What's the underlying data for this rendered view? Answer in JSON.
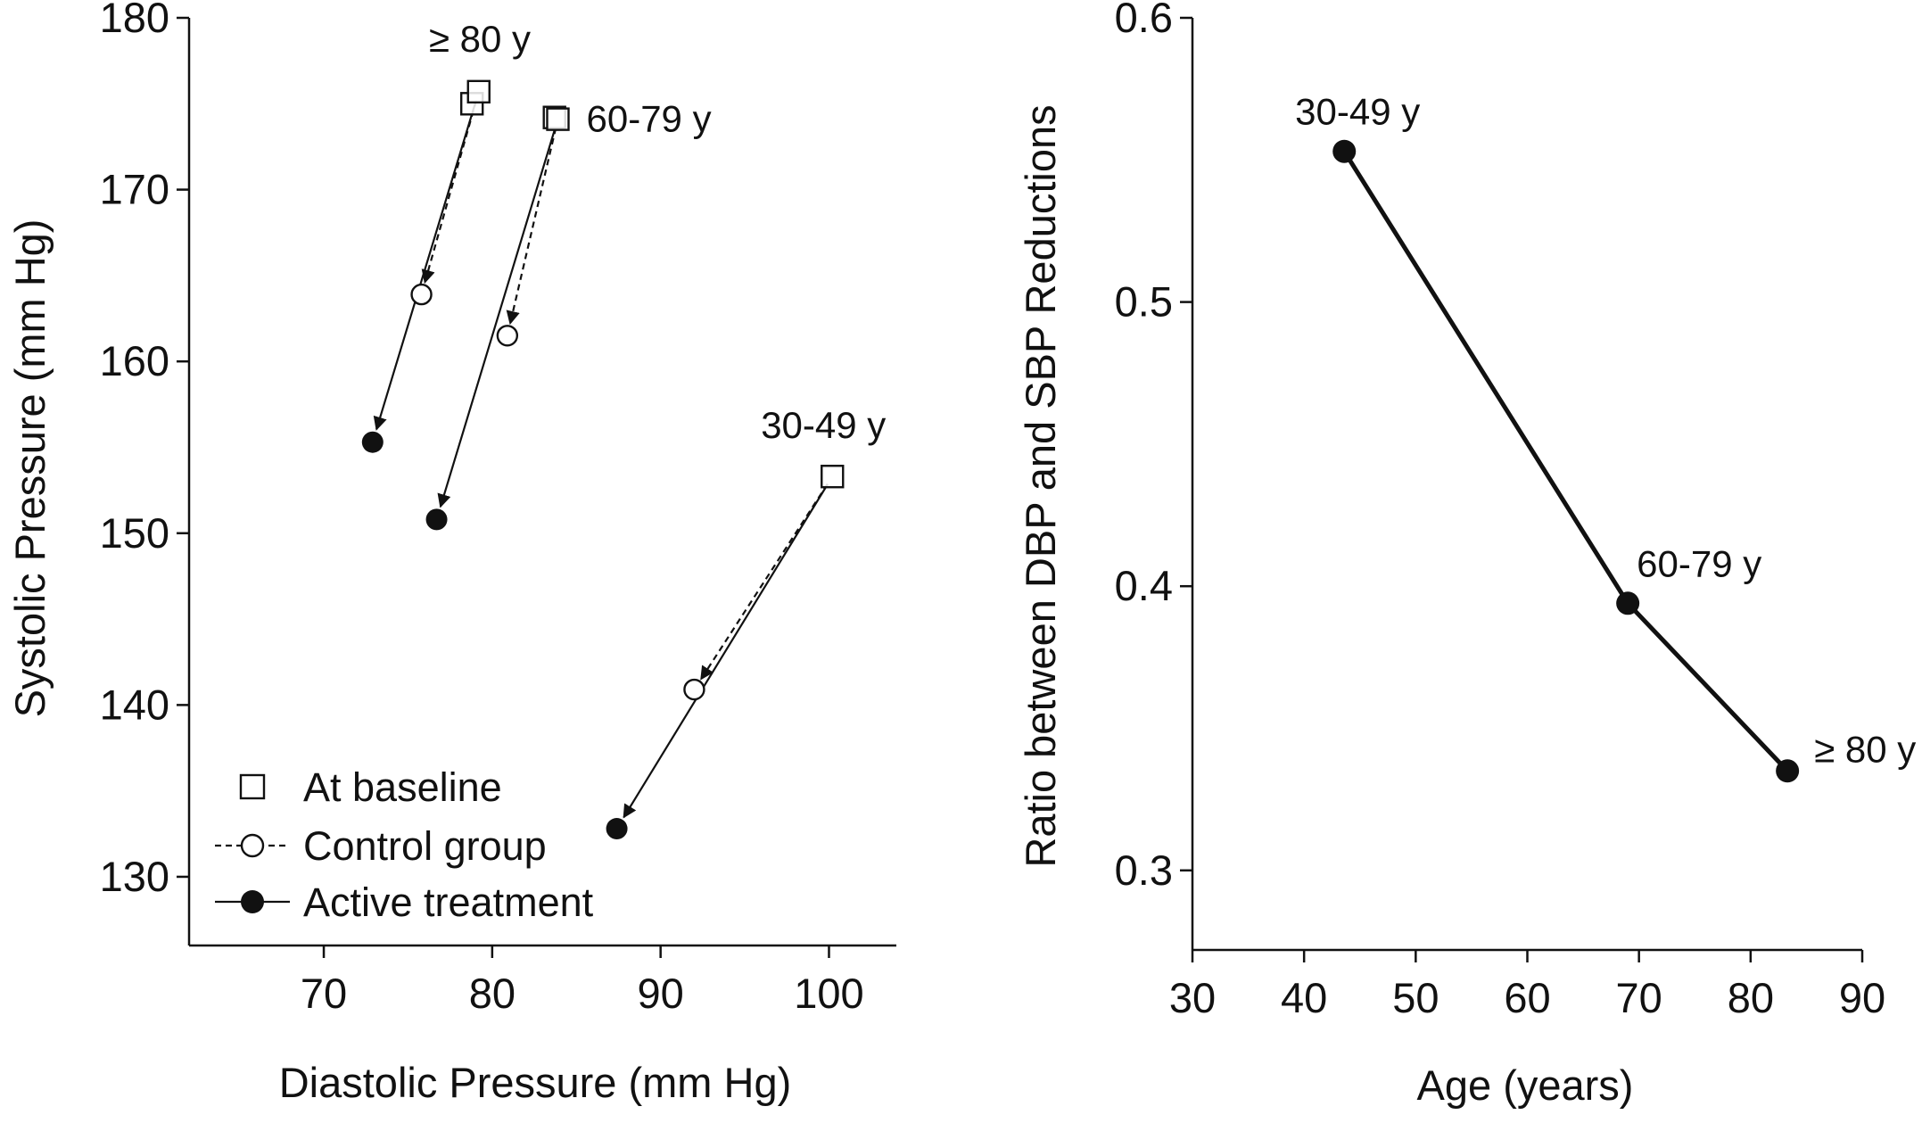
{
  "chart_data": [
    {
      "type": "scatter",
      "xlabel": "Diastolic Pressure (mm Hg)",
      "ylabel": "Systolic Pressure (mm Hg)",
      "xlim": [
        62,
        104
      ],
      "ylim": [
        126,
        180
      ],
      "xticks": [
        70,
        80,
        90,
        100
      ],
      "yticks": [
        130,
        140,
        150,
        160,
        170,
        180
      ],
      "grid": false,
      "legend_position": "bottom-left",
      "legend": [
        {
          "marker": "open-square",
          "line": "none",
          "label": "At baseline"
        },
        {
          "marker": "open-circle",
          "line": "dashed",
          "label": "Control group"
        },
        {
          "marker": "filled-circle",
          "line": "solid",
          "label": "Active treatment"
        }
      ],
      "groups": [
        {
          "label": "≥ 80 y",
          "baseline": [
            [
              78.8,
              175.0
            ],
            [
              79.2,
              175.7
            ]
          ],
          "control": [
            75.8,
            163.9
          ],
          "active": [
            72.9,
            155.3
          ]
        },
        {
          "label": "60-79 y",
          "baseline": [
            [
              83.7,
              174.2
            ],
            [
              83.9,
              174.1
            ]
          ],
          "control": [
            80.9,
            161.5
          ],
          "active": [
            76.7,
            150.8
          ]
        },
        {
          "label": "30-49 y",
          "baseline": [
            [
              100.2,
              153.3
            ]
          ],
          "control": [
            92.0,
            140.9
          ],
          "active": [
            87.4,
            132.8
          ]
        }
      ]
    },
    {
      "type": "line",
      "xlabel": "Age (years)",
      "ylabel": "Ratio between DBP and SBP Reductions",
      "xlim": [
        30,
        90
      ],
      "ylim": [
        0.272,
        0.6
      ],
      "xticks": [
        30,
        40,
        50,
        60,
        70,
        80,
        90
      ],
      "yticks": [
        0.3,
        0.4,
        0.5,
        0.6
      ],
      "ytick_labels": [
        "0.3",
        "0.4",
        "0.5",
        "0.6"
      ],
      "grid": false,
      "points": [
        {
          "label": "30-49 y",
          "x": 43.6,
          "y": 0.553
        },
        {
          "label": "60-79 y",
          "x": 69.0,
          "y": 0.394
        },
        {
          "label": "≥ 80 y",
          "x": 83.3,
          "y": 0.335
        }
      ]
    }
  ]
}
